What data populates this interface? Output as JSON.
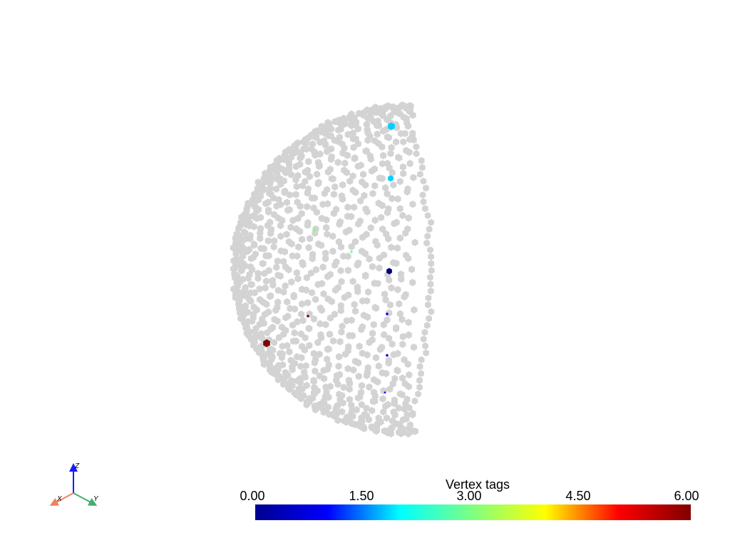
{
  "scalar_bar": {
    "title": "Vertex tags",
    "ticks": [
      "0.00",
      "1.50",
      "3.00",
      "4.50",
      "6.00"
    ],
    "range": [
      0,
      6
    ],
    "colormap": "jet",
    "colormap_stops": [
      "#00008f",
      "#0000ff",
      "#00ffff",
      "#80ff80",
      "#ffff00",
      "#ff0000",
      "#800000"
    ]
  },
  "axes": {
    "x_label": "X",
    "y_label": "Y",
    "z_label": "Z",
    "x_color": "#f08060",
    "y_color": "#40b070",
    "z_color": "#1a1aff"
  },
  "mesh": {
    "base_color": "#d3d3d3",
    "shape": "half-sphere point cloud",
    "tagged_points": [
      {
        "tag": 2,
        "color": "#00d0ff"
      },
      {
        "tag": 2,
        "color": "#00d0ff"
      },
      {
        "tag": 3,
        "color": "#80ff80"
      },
      {
        "tag": 3,
        "color": "#80ff80"
      },
      {
        "tag": 0,
        "color": "#000080"
      },
      {
        "tag": 0.5,
        "color": "#0000ff"
      },
      {
        "tag": 0.5,
        "color": "#0000ff"
      },
      {
        "tag": 0.5,
        "color": "#0000ff"
      },
      {
        "tag": 6,
        "color": "#800000"
      },
      {
        "tag": 6,
        "color": "#800000"
      }
    ]
  }
}
